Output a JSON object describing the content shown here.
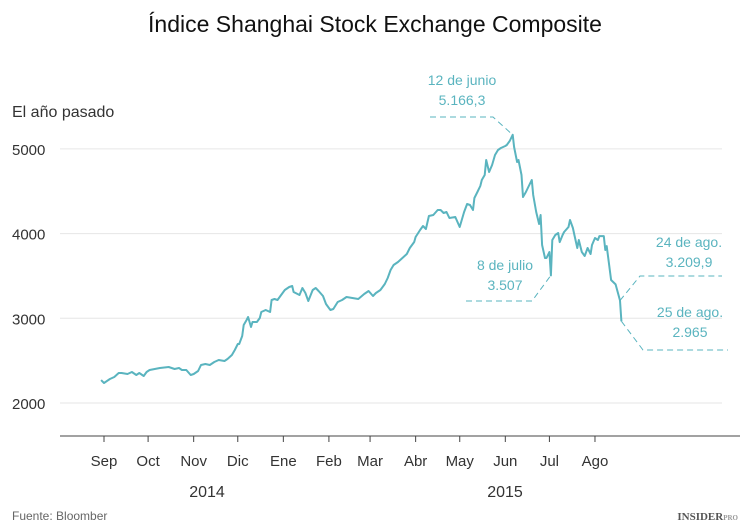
{
  "chart_data": {
    "type": "line",
    "title": "Índice Shanghai Stock Exchange Composite",
    "ylabel": "El año pasado",
    "ylim": [
      1610,
      5400
    ],
    "yticks": [
      2000,
      3000,
      4000,
      5000
    ],
    "grid": true,
    "x_tick_labels": [
      "Sep",
      "Oct",
      "Nov",
      "Dic",
      "Ene",
      "Feb",
      "Mar",
      "Abr",
      "May",
      "Jun",
      "Jul",
      "Ago"
    ],
    "year_labels": [
      "2014",
      "2015"
    ],
    "line_color": "#5ab4bf",
    "annotation_color": "#5ab4bf",
    "series": [
      {
        "points": [
          [
            "2014-09-05",
            2270
          ],
          [
            "2014-09-07",
            2236
          ],
          [
            "2014-09-11",
            2283
          ],
          [
            "2014-09-14",
            2307
          ],
          [
            "2014-09-17",
            2354
          ],
          [
            "2014-09-19",
            2354
          ],
          [
            "2014-09-23",
            2342
          ],
          [
            "2014-09-26",
            2366
          ],
          [
            "2014-09-29",
            2331
          ],
          [
            "2014-10-01",
            2354
          ],
          [
            "2014-10-04",
            2319
          ],
          [
            "2014-10-06",
            2366
          ],
          [
            "2014-10-08",
            2390
          ],
          [
            "2014-10-15",
            2413
          ],
          [
            "2014-10-21",
            2425
          ],
          [
            "2014-10-25",
            2401
          ],
          [
            "2014-10-28",
            2413
          ],
          [
            "2014-10-30",
            2390
          ],
          [
            "2014-11-02",
            2390
          ],
          [
            "2014-11-05",
            2331
          ],
          [
            "2014-11-07",
            2342
          ],
          [
            "2014-11-10",
            2378
          ],
          [
            "2014-11-12",
            2449
          ],
          [
            "2014-11-15",
            2460
          ],
          [
            "2014-11-18",
            2449
          ],
          [
            "2014-11-21",
            2484
          ],
          [
            "2014-11-24",
            2508
          ],
          [
            "2014-11-28",
            2496
          ],
          [
            "2014-11-30",
            2519
          ],
          [
            "2014-12-03",
            2567
          ],
          [
            "2014-12-05",
            2626
          ],
          [
            "2014-12-07",
            2697
          ],
          [
            "2014-12-08",
            2697
          ],
          [
            "2014-12-10",
            2791
          ],
          [
            "2014-12-11",
            2921
          ],
          [
            "2014-12-13",
            2980
          ],
          [
            "2014-12-14",
            3015
          ],
          [
            "2014-12-16",
            2897
          ],
          [
            "2014-12-17",
            2956
          ],
          [
            "2014-12-20",
            2956
          ],
          [
            "2014-12-22",
            3003
          ],
          [
            "2014-12-23",
            3074
          ],
          [
            "2014-12-26",
            3098
          ],
          [
            "2014-12-29",
            3074
          ],
          [
            "2014-12-30",
            3216
          ],
          [
            "2015-01-01",
            3228
          ],
          [
            "2015-01-03",
            3216
          ],
          [
            "2015-01-05",
            3263
          ],
          [
            "2015-01-08",
            3334
          ],
          [
            "2015-01-11",
            3369
          ],
          [
            "2015-01-13",
            3381
          ],
          [
            "2015-01-14",
            3310
          ],
          [
            "2015-01-18",
            3275
          ],
          [
            "2015-01-20",
            3358
          ],
          [
            "2015-01-22",
            3299
          ],
          [
            "2015-01-24",
            3204
          ],
          [
            "2015-01-27",
            3334
          ],
          [
            "2015-01-29",
            3358
          ],
          [
            "2015-01-31",
            3322
          ],
          [
            "2015-02-03",
            3263
          ],
          [
            "2015-02-05",
            3169
          ],
          [
            "2015-02-07",
            3122
          ],
          [
            "2015-02-08",
            3098
          ],
          [
            "2015-02-10",
            3110
          ],
          [
            "2015-02-13",
            3192
          ],
          [
            "2015-02-16",
            3216
          ],
          [
            "2015-02-19",
            3251
          ],
          [
            "2015-02-23",
            3240
          ],
          [
            "2015-02-27",
            3228
          ],
          [
            "2015-03-03",
            3287
          ],
          [
            "2015-03-06",
            3322
          ],
          [
            "2015-03-09",
            3263
          ],
          [
            "2015-03-11",
            3299
          ],
          [
            "2015-03-14",
            3334
          ],
          [
            "2015-03-17",
            3405
          ],
          [
            "2015-03-19",
            3476
          ],
          [
            "2015-03-21",
            3570
          ],
          [
            "2015-03-23",
            3629
          ],
          [
            "2015-03-26",
            3665
          ],
          [
            "2015-03-29",
            3712
          ],
          [
            "2015-04-01",
            3759
          ],
          [
            "2015-04-03",
            3830
          ],
          [
            "2015-04-06",
            3901
          ],
          [
            "2015-04-07",
            3960
          ],
          [
            "2015-04-10",
            4042
          ],
          [
            "2015-04-12",
            4090
          ],
          [
            "2015-04-14",
            4054
          ],
          [
            "2015-04-16",
            4208
          ],
          [
            "2015-04-19",
            4220
          ],
          [
            "2015-04-22",
            4279
          ],
          [
            "2015-04-24",
            4279
          ],
          [
            "2015-04-26",
            4243
          ],
          [
            "2015-04-28",
            4255
          ],
          [
            "2015-04-30",
            4184
          ],
          [
            "2015-05-04",
            4196
          ],
          [
            "2015-05-07",
            4078
          ],
          [
            "2015-05-10",
            4255
          ],
          [
            "2015-05-12",
            4349
          ],
          [
            "2015-05-14",
            4338
          ],
          [
            "2015-05-16",
            4279
          ],
          [
            "2015-05-17",
            4420
          ],
          [
            "2015-05-19",
            4491
          ],
          [
            "2015-05-21",
            4562
          ],
          [
            "2015-05-22",
            4633
          ],
          [
            "2015-05-24",
            4692
          ],
          [
            "2015-05-25",
            4869
          ],
          [
            "2015-05-27",
            4727
          ],
          [
            "2015-05-29",
            4810
          ],
          [
            "2015-05-31",
            4928
          ],
          [
            "2015-06-02",
            4987
          ],
          [
            "2015-06-04",
            5011
          ],
          [
            "2015-06-07",
            5034
          ],
          [
            "2015-06-08",
            5046
          ],
          [
            "2015-06-10",
            5093
          ],
          [
            "2015-06-12",
            5166.3
          ],
          [
            "2015-06-13",
            5022
          ],
          [
            "2015-06-15",
            4845
          ],
          [
            "2015-06-16",
            4869
          ],
          [
            "2015-06-18",
            4692
          ],
          [
            "2015-06-19",
            4432
          ],
          [
            "2015-06-21",
            4491
          ],
          [
            "2015-06-23",
            4562
          ],
          [
            "2015-06-25",
            4633
          ],
          [
            "2015-06-26",
            4456
          ],
          [
            "2015-06-28",
            4255
          ],
          [
            "2015-06-30",
            4113
          ],
          [
            "2015-07-01",
            4220
          ],
          [
            "2015-07-02",
            3865
          ],
          [
            "2015-07-04",
            3712
          ],
          [
            "2015-07-05",
            3712
          ],
          [
            "2015-07-07",
            3783
          ],
          [
            "2015-07-08",
            3507
          ],
          [
            "2015-07-09",
            3924
          ],
          [
            "2015-07-11",
            3983
          ],
          [
            "2015-07-13",
            4007
          ],
          [
            "2015-07-14",
            3900
          ],
          [
            "2015-07-16",
            3983
          ],
          [
            "2015-07-17",
            4019
          ],
          [
            "2015-07-20",
            4078
          ],
          [
            "2015-07-21",
            4160
          ],
          [
            "2015-07-23",
            4066
          ],
          [
            "2015-07-24",
            3983
          ],
          [
            "2015-07-26",
            3830
          ],
          [
            "2015-07-27",
            3924
          ],
          [
            "2015-07-29",
            3783
          ],
          [
            "2015-07-31",
            3736
          ],
          [
            "2015-08-02",
            3830
          ],
          [
            "2015-08-04",
            3759
          ],
          [
            "2015-08-05",
            3865
          ],
          [
            "2015-08-07",
            3948
          ],
          [
            "2015-08-09",
            3924
          ],
          [
            "2015-08-10",
            3971
          ],
          [
            "2015-08-13",
            3971
          ],
          [
            "2015-08-14",
            3806
          ],
          [
            "2015-08-15",
            3853
          ],
          [
            "2015-08-18",
            3452
          ],
          [
            "2015-08-21",
            3400
          ],
          [
            "2015-08-24",
            3209.9
          ],
          [
            "2015-08-25",
            2965
          ]
        ]
      }
    ],
    "annotations": [
      {
        "date": "2015-06-12",
        "label": "12 de junio",
        "value_label": "5.166,3",
        "value": 5166.3
      },
      {
        "date": "2015-07-08",
        "label": "8 de julio",
        "value_label": "3.507",
        "value": 3507
      },
      {
        "date": "2015-08-24",
        "label": "24 de ago.",
        "value_label": "3.209,9",
        "value": 3209.9
      },
      {
        "date": "2015-08-25",
        "label": "25 de ago.",
        "value_label": "2.965",
        "value": 2965
      }
    ],
    "source": "Fuente: Bloomber",
    "logo": "INSIDER PRO"
  }
}
